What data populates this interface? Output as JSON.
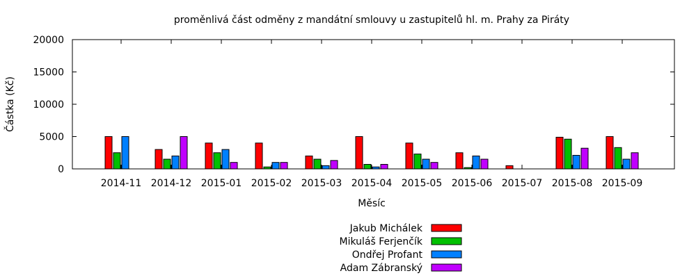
{
  "chart_data": {
    "type": "bar",
    "title": "proměnlivá část odměny z mandátní smlouvy u zastupitelů hl. m. Prahy za Piráty",
    "xlabel": "Měsíc",
    "ylabel": "Částka (Kč)",
    "ylim": [
      0,
      20000
    ],
    "yticks": [
      0,
      5000,
      10000,
      15000,
      20000
    ],
    "categories": [
      "2014-11",
      "2014-12",
      "2015-01",
      "2015-02",
      "2015-03",
      "2015-04",
      "2015-05",
      "2015-06",
      "2015-07",
      "2015-08",
      "2015-09"
    ],
    "legend_position": "bottom",
    "grid": false,
    "series": [
      {
        "name": "Jakub Michálek",
        "color": "#ff0000",
        "values": [
          5000,
          3000,
          4000,
          4000,
          2000,
          5000,
          4000,
          2500,
          500,
          4900,
          5000
        ]
      },
      {
        "name": "Mikuláš Ferjenčík",
        "color": "#00c000",
        "values": [
          2500,
          1500,
          2500,
          300,
          1500,
          700,
          2300,
          200,
          0,
          4600,
          3300
        ]
      },
      {
        "name": "Ondřej Profant",
        "color": "#0080ff",
        "values": [
          5000,
          2000,
          3000,
          1000,
          500,
          300,
          1500,
          2000,
          0,
          2100,
          1500
        ]
      },
      {
        "name": "Adam Zábranský",
        "color": "#c000ff",
        "values": [
          0,
          5000,
          1000,
          1000,
          1300,
          700,
          1000,
          1500,
          0,
          3200,
          2500
        ]
      }
    ]
  }
}
